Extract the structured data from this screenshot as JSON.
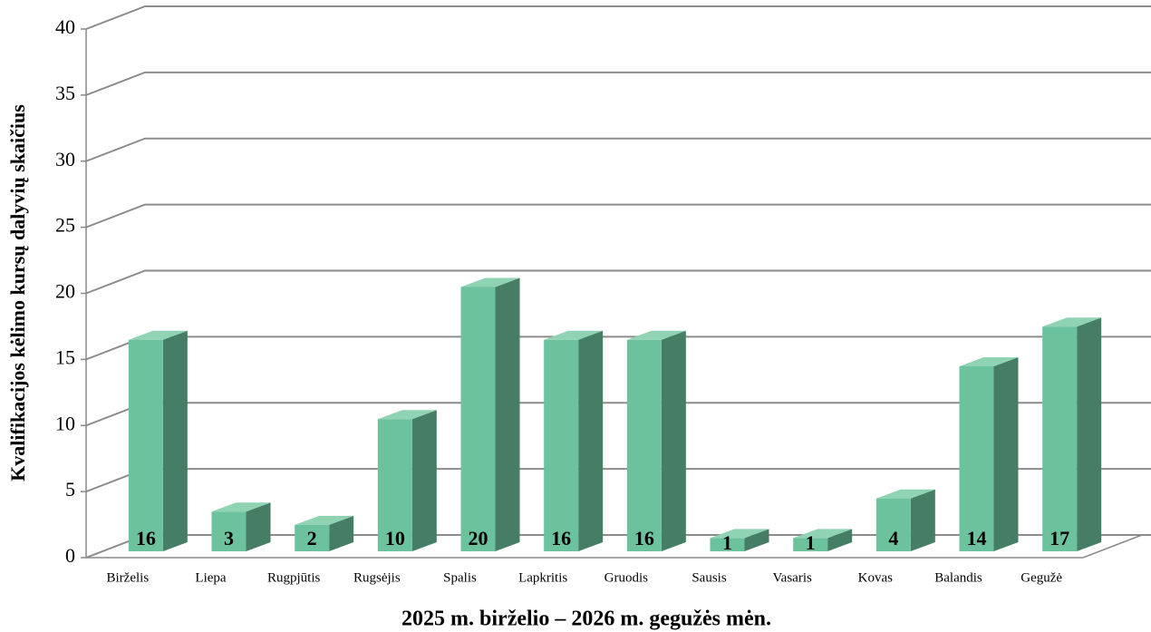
{
  "chart_data": {
    "type": "bar3d",
    "x_label": "2025 m. birželio – 2026 m. gegužės mėn.",
    "y_label": "Kvalifikacijos kėlimo kursų dalyvių skaičius",
    "categories": [
      "Birželis",
      "Liepa",
      "Rugpjūtis",
      "Rugsėjis",
      "Spalis",
      "Lapkritis",
      "Gruodis",
      "Sausis",
      "Vasaris",
      "Kovas",
      "Balandis",
      "Gegužė"
    ],
    "values": [
      16,
      3,
      2,
      10,
      20,
      16,
      16,
      1,
      1,
      4,
      14,
      17
    ],
    "color": "#6dc29e",
    "ylim": [
      0,
      40
    ],
    "yticks": [
      0,
      5,
      10,
      15,
      20,
      25,
      30,
      35,
      40
    ],
    "grid": true
  }
}
